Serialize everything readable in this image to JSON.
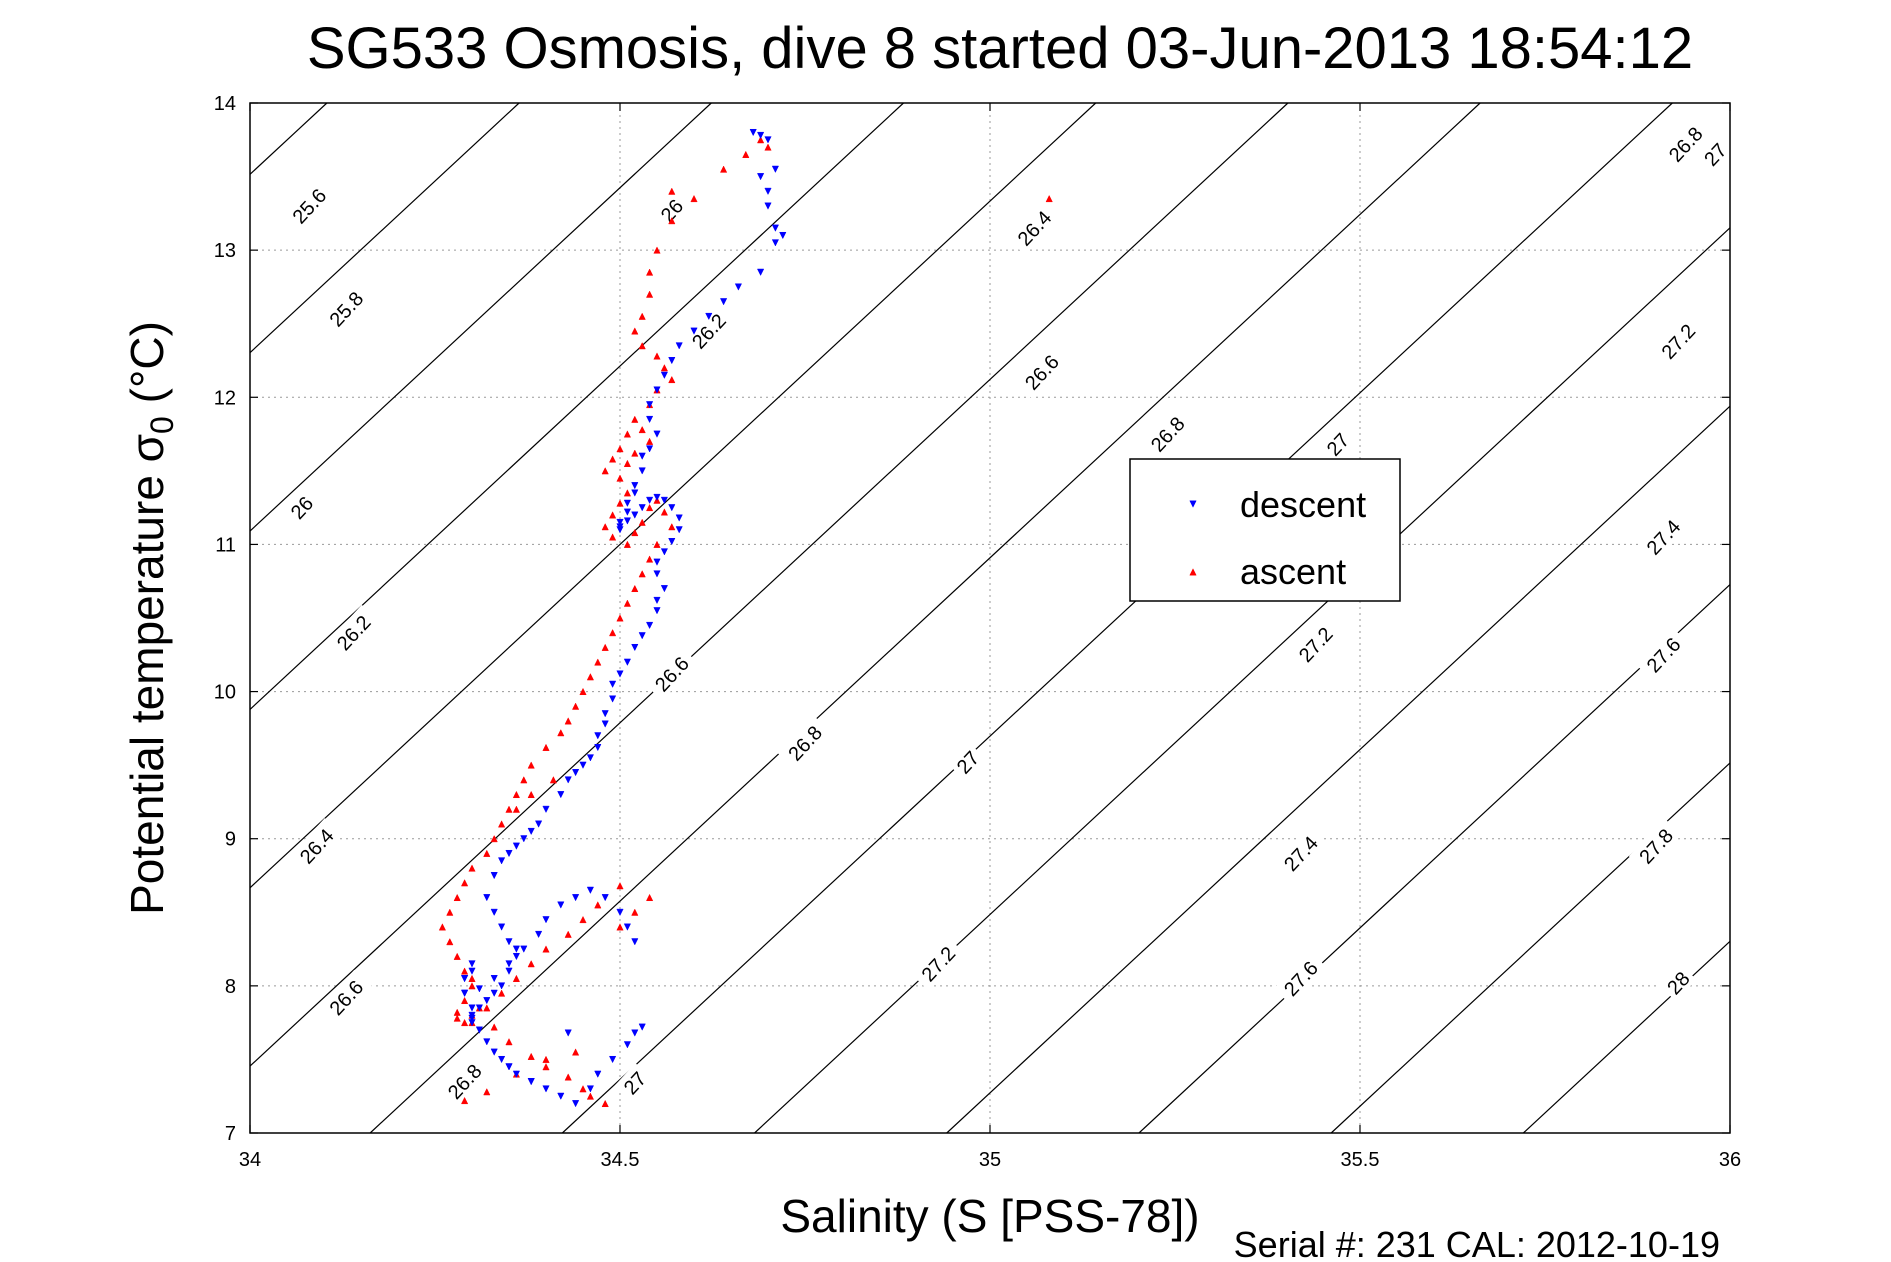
{
  "chart_data": {
    "type": "scatter",
    "title": "SG533 Osmosis, dive 8 started 03-Jun-2013 18:54:12",
    "xlabel": "Salinity (S [PSS-78])",
    "ylabel": "Potential temperature σ0 (°C)",
    "xlim": [
      34,
      36
    ],
    "ylim": [
      7,
      14
    ],
    "x_ticks": [
      "34",
      "34.5",
      "35",
      "35.5",
      "36"
    ],
    "y_ticks": [
      "7",
      "8",
      "9",
      "10",
      "11",
      "12",
      "13",
      "14"
    ],
    "grid": true,
    "footer": "Serial #: 231  CAL: 2012-10-19",
    "legend": {
      "placement": "center-right",
      "entries": [
        "descent",
        "ascent"
      ]
    },
    "colors": {
      "descent": "#0000ff",
      "ascent": "#ff0000",
      "contours": "#000000",
      "grid": "#9a9a9a"
    },
    "contours": [
      {
        "level": 25.6,
        "label": "25.6"
      },
      {
        "level": 25.8,
        "label": "25.8"
      },
      {
        "level": 26.0,
        "label": "26"
      },
      {
        "level": 26.2,
        "label": "26.2"
      },
      {
        "level": 26.4,
        "label": "26.4"
      },
      {
        "level": 26.6,
        "label": "26.6"
      },
      {
        "level": 26.8,
        "label": "26.8"
      },
      {
        "level": 27.0,
        "label": "27"
      },
      {
        "level": 27.2,
        "label": "27.2"
      },
      {
        "level": 27.4,
        "label": "27.4"
      },
      {
        "level": 27.6,
        "label": "27.6"
      },
      {
        "level": 27.8,
        "label": "27.8"
      },
      {
        "level": 28.0,
        "label": "28"
      }
    ],
    "contour_labels": [
      {
        "text": "25.6",
        "at": [
          34.08,
          13.3
        ]
      },
      {
        "text": "25.8",
        "at": [
          34.13,
          12.6
        ]
      },
      {
        "text": "26",
        "at": [
          34.57,
          13.27
        ]
      },
      {
        "text": "26",
        "at": [
          34.07,
          11.25
        ]
      },
      {
        "text": "26.2",
        "at": [
          34.62,
          12.45
        ]
      },
      {
        "text": "26.2",
        "at": [
          34.14,
          10.4
        ]
      },
      {
        "text": "26.4",
        "at": [
          35.06,
          13.15
        ]
      },
      {
        "text": "26.4",
        "at": [
          34.09,
          8.95
        ]
      },
      {
        "text": "26.6",
        "at": [
          35.07,
          12.17
        ]
      },
      {
        "text": "26.6",
        "at": [
          34.57,
          10.12
        ]
      },
      {
        "text": "26.6",
        "at": [
          34.13,
          7.92
        ]
      },
      {
        "text": "26.8",
        "at": [
          35.94,
          13.72
        ]
      },
      {
        "text": "26.8",
        "at": [
          35.24,
          11.75
        ]
      },
      {
        "text": "26.8",
        "at": [
          34.75,
          9.65
        ]
      },
      {
        "text": "26.8",
        "at": [
          34.29,
          7.35
        ]
      },
      {
        "text": "27",
        "at": [
          35.98,
          13.65
        ]
      },
      {
        "text": "27",
        "at": [
          35.47,
          11.68
        ]
      },
      {
        "text": "27",
        "at": [
          34.97,
          9.52
        ]
      },
      {
        "text": "27",
        "at": [
          34.52,
          7.34
        ]
      },
      {
        "text": "27.2",
        "at": [
          35.93,
          12.38
        ]
      },
      {
        "text": "27.2",
        "at": [
          35.44,
          10.32
        ]
      },
      {
        "text": "27.2",
        "at": [
          34.93,
          8.15
        ]
      },
      {
        "text": "27.4",
        "at": [
          35.91,
          11.05
        ]
      },
      {
        "text": "27.4",
        "at": [
          35.42,
          8.9
        ]
      },
      {
        "text": "27.6",
        "at": [
          35.91,
          10.25
        ]
      },
      {
        "text": "27.6",
        "at": [
          35.42,
          8.05
        ]
      },
      {
        "text": "27.8",
        "at": [
          35.9,
          8.95
        ]
      },
      {
        "text": "28",
        "at": [
          35.93,
          8.02
        ]
      }
    ],
    "series": [
      {
        "name": "descent",
        "x": [
          34.68,
          34.69,
          34.7,
          34.71,
          34.7,
          34.69,
          34.7,
          34.71,
          34.72,
          34.71,
          34.69,
          34.66,
          34.64,
          34.62,
          34.6,
          34.58,
          34.57,
          34.56,
          34.55,
          34.54,
          34.54,
          34.55,
          34.54,
          34.53,
          34.53,
          34.52,
          34.52,
          34.51,
          34.51,
          34.5,
          34.5,
          34.5,
          34.51,
          34.52,
          34.53,
          34.54,
          34.55,
          34.56,
          34.57,
          34.58,
          34.58,
          34.57,
          34.56,
          34.55,
          34.55,
          34.56,
          34.55,
          34.55,
          34.54,
          34.53,
          34.52,
          34.51,
          34.5,
          34.49,
          34.49,
          34.48,
          34.48,
          34.47,
          34.47,
          34.46,
          34.45,
          34.44,
          34.43,
          34.42,
          34.4,
          34.39,
          34.38,
          34.37,
          34.36,
          34.35,
          34.34,
          34.33,
          34.32,
          34.33,
          34.34,
          34.35,
          34.36,
          34.36,
          34.35,
          34.34,
          34.33,
          34.32,
          34.31,
          34.3,
          34.3,
          34.29,
          34.29,
          34.3,
          34.3,
          34.29,
          34.29,
          34.3,
          34.3,
          34.31,
          34.32,
          34.33,
          34.34,
          34.35,
          34.36,
          34.38,
          34.4,
          34.42,
          34.44,
          34.46,
          34.47,
          34.49,
          34.51,
          34.52,
          34.53,
          34.52,
          34.51,
          34.5,
          34.48,
          34.46,
          34.44,
          34.42,
          34.4,
          34.39,
          34.37,
          34.35,
          34.33,
          34.31,
          34.35,
          34.38,
          34.43
        ],
        "y": [
          13.8,
          13.78,
          13.75,
          13.55,
          13.4,
          13.5,
          13.3,
          13.15,
          13.1,
          13.05,
          12.85,
          12.75,
          12.65,
          12.55,
          12.45,
          12.35,
          12.25,
          12.15,
          12.05,
          11.95,
          11.85,
          11.75,
          11.65,
          11.6,
          11.5,
          11.4,
          11.35,
          11.28,
          11.22,
          11.15,
          11.1,
          11.12,
          11.16,
          11.2,
          11.25,
          11.3,
          11.32,
          11.3,
          11.25,
          11.18,
          11.1,
          11.02,
          10.95,
          10.88,
          10.8,
          10.7,
          10.62,
          10.55,
          10.45,
          10.38,
          10.3,
          10.2,
          10.12,
          10.05,
          9.95,
          9.85,
          9.78,
          9.7,
          9.62,
          9.55,
          9.5,
          9.45,
          9.4,
          9.3,
          9.2,
          9.1,
          9.05,
          9.0,
          8.95,
          8.9,
          8.85,
          8.75,
          8.6,
          8.5,
          8.4,
          8.3,
          8.25,
          8.2,
          8.1,
          8.0,
          7.95,
          7.9,
          7.85,
          7.8,
          7.75,
          7.95,
          8.05,
          8.1,
          8.15,
          8.05,
          7.95,
          7.85,
          7.78,
          7.7,
          7.62,
          7.55,
          7.5,
          7.45,
          7.4,
          7.35,
          7.3,
          7.25,
          7.2,
          7.3,
          7.4,
          7.5,
          7.6,
          7.68,
          7.72,
          8.3,
          8.4,
          8.5,
          8.6,
          8.65,
          8.6,
          8.55,
          8.45,
          8.35,
          8.25,
          8.15,
          8.05,
          7.98,
          7.45,
          7.35,
          7.68
        ]
      },
      {
        "name": "ascent",
        "x": [
          34.69,
          34.7,
          34.67,
          34.64,
          34.6,
          34.57,
          34.55,
          34.54,
          34.54,
          34.53,
          34.52,
          34.53,
          34.55,
          34.56,
          34.57,
          34.55,
          34.54,
          34.52,
          34.51,
          34.5,
          34.49,
          34.48,
          34.5,
          34.51,
          34.52,
          34.54,
          34.53,
          34.51,
          34.5,
          34.49,
          34.48,
          34.49,
          34.51,
          34.52,
          34.53,
          34.54,
          34.55,
          34.56,
          34.57,
          34.55,
          34.54,
          34.53,
          34.52,
          34.51,
          34.5,
          34.49,
          34.48,
          34.47,
          34.46,
          34.45,
          34.44,
          34.43,
          34.42,
          34.4,
          34.38,
          34.37,
          34.36,
          34.35,
          34.34,
          34.33,
          34.32,
          34.3,
          34.29,
          34.28,
          34.27,
          34.26,
          34.27,
          34.28,
          34.29,
          34.3,
          34.3,
          34.29,
          34.28,
          34.28,
          34.29,
          34.3,
          34.31,
          34.33,
          34.35,
          34.38,
          34.4,
          34.43,
          34.45,
          34.46,
          34.48,
          34.5,
          34.52,
          34.54,
          34.5,
          34.47,
          34.45,
          34.43,
          34.4,
          34.38,
          34.36,
          34.34,
          34.32,
          34.3,
          34.29,
          34.32,
          34.36,
          34.4,
          34.44,
          34.41,
          34.38,
          34.36,
          35.08,
          34.57
        ],
        "y": [
          13.75,
          13.7,
          13.65,
          13.55,
          13.35,
          13.2,
          13.0,
          12.85,
          12.7,
          12.55,
          12.45,
          12.35,
          12.28,
          12.2,
          12.12,
          12.05,
          11.95,
          11.85,
          11.75,
          11.65,
          11.58,
          11.5,
          11.45,
          11.55,
          11.62,
          11.7,
          11.78,
          11.35,
          11.28,
          11.2,
          11.12,
          11.05,
          11.0,
          11.08,
          11.15,
          11.25,
          11.3,
          11.22,
          11.12,
          11.0,
          10.9,
          10.8,
          10.7,
          10.6,
          10.5,
          10.4,
          10.3,
          10.2,
          10.1,
          10.0,
          9.9,
          9.8,
          9.72,
          9.62,
          9.5,
          9.4,
          9.3,
          9.2,
          9.1,
          9.0,
          8.9,
          8.8,
          8.7,
          8.6,
          8.5,
          8.4,
          8.3,
          8.2,
          8.1,
          8.05,
          8.0,
          7.9,
          7.82,
          7.78,
          7.75,
          7.8,
          7.85,
          7.72,
          7.62,
          7.52,
          7.45,
          7.38,
          7.3,
          7.25,
          7.2,
          8.4,
          8.5,
          8.6,
          8.68,
          8.55,
          8.45,
          8.35,
          8.25,
          8.15,
          8.05,
          7.95,
          7.85,
          7.75,
          7.22,
          7.28,
          7.4,
          7.5,
          7.55,
          9.4,
          9.3,
          9.2,
          13.35,
          13.4
        ]
      }
    ]
  }
}
